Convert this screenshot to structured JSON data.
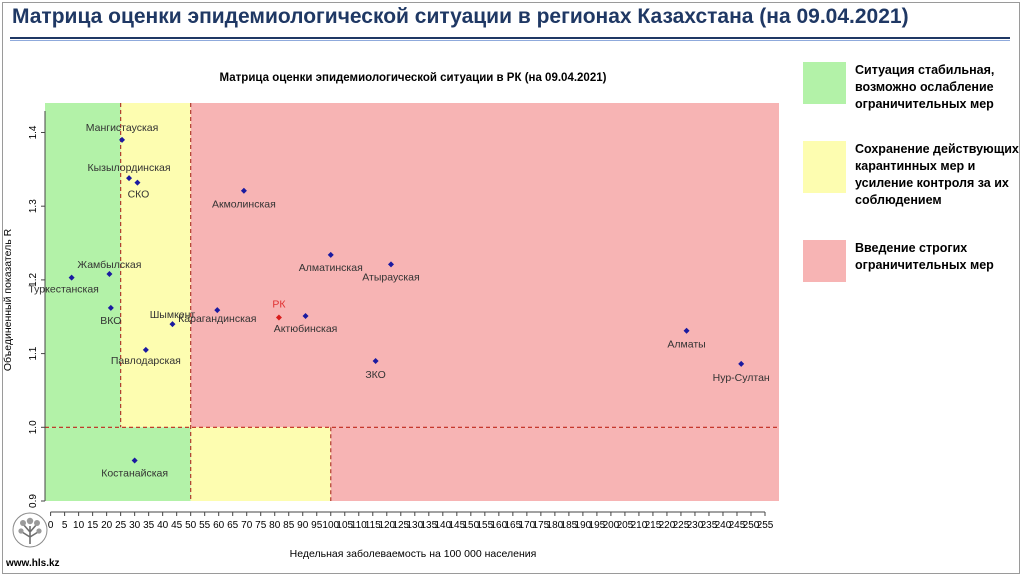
{
  "header": {
    "title": "Матрица оценки эпидемиологической ситуации в регионах Казахстана (на 09.04.2021)"
  },
  "footer": {
    "site": "www.hls.kz"
  },
  "legend": [
    {
      "label_lines": [
        "Ситуация стабильная,",
        "возможно ослабление",
        "ограничительных мер"
      ],
      "color": "#b3f2a8"
    },
    {
      "label_lines": [
        "Сохранение действующих",
        "карантинных мер и",
        "усиление контроля за их",
        "соблюдением"
      ],
      "color": "#fdfdb0"
    },
    {
      "label_lines": [
        "Введение строгих",
        "ограничительных мер"
      ],
      "color": "#f7b4b4"
    }
  ],
  "chart_data": {
    "type": "scatter",
    "title": "Матрица оценки эпидемиологической ситуации в РК (на 09.04.2021)",
    "xlabel": "Недельная заболеваемость на 100 000 населения",
    "ylabel": "Объединенный показатель R",
    "xlim": [
      -2,
      260
    ],
    "ylim": [
      0.9,
      1.44
    ],
    "xticks": [
      0,
      5,
      10,
      15,
      20,
      25,
      30,
      35,
      40,
      45,
      50,
      55,
      60,
      65,
      70,
      75,
      80,
      85,
      90,
      95,
      100,
      105,
      110,
      115,
      120,
      125,
      130,
      135,
      140,
      145,
      150,
      155,
      160,
      165,
      170,
      175,
      180,
      185,
      190,
      195,
      200,
      205,
      210,
      215,
      220,
      225,
      230,
      235,
      240,
      245,
      250,
      255
    ],
    "yticks": [
      0.9,
      1.0,
      1.1,
      1.2,
      1.3,
      1.4
    ],
    "grid": false,
    "zones": [
      {
        "x": [
          -2,
          25
        ],
        "y": [
          1.0,
          1.44
        ],
        "color": "#b3f2a8"
      },
      {
        "x": [
          25,
          50
        ],
        "y": [
          1.0,
          1.44
        ],
        "color": "#fdfdb0"
      },
      {
        "x": [
          50,
          260
        ],
        "y": [
          1.0,
          1.44
        ],
        "color": "#f7b4b4"
      },
      {
        "x": [
          -2,
          50
        ],
        "y": [
          0.9,
          1.0
        ],
        "color": "#b3f2a8"
      },
      {
        "x": [
          50,
          100
        ],
        "y": [
          0.9,
          1.0
        ],
        "color": "#fdfdb0"
      },
      {
        "x": [
          100,
          260
        ],
        "y": [
          0.9,
          1.0
        ],
        "color": "#f7b4b4"
      }
    ],
    "threshold_lines": [
      {
        "axis": "x",
        "value": 25,
        "y": [
          1.0,
          1.44
        ]
      },
      {
        "axis": "x",
        "value": 50,
        "y": [
          0.9,
          1.44
        ]
      },
      {
        "axis": "x",
        "value": 100,
        "y": [
          0.9,
          1.0
        ]
      },
      {
        "axis": "y",
        "value": 1.0
      }
    ],
    "points": [
      {
        "label": "Мангистауская",
        "x": 25.5,
        "y": 1.39,
        "color": "#1a1aa0",
        "label_color": "#333333"
      },
      {
        "label": "Кызылординская",
        "x": 28,
        "y": 1.338,
        "color": "#1a1aa0",
        "label_color": "#333333"
      },
      {
        "label": "СКО",
        "x": 31,
        "y": 1.332,
        "color": "#1a1aa0",
        "label_color": "#333333"
      },
      {
        "label": "Акмолинская",
        "x": 69,
        "y": 1.321,
        "color": "#1a1aa0",
        "label_color": "#333333"
      },
      {
        "label": "Жамбылская",
        "x": 21,
        "y": 1.208,
        "color": "#1a1aa0",
        "label_color": "#333333"
      },
      {
        "label": "Туркестанская",
        "x": 7.5,
        "y": 1.203,
        "color": "#1a1aa0",
        "label_color": "#333333"
      },
      {
        "label": "Алматинская",
        "x": 100,
        "y": 1.234,
        "color": "#1a1aa0",
        "label_color": "#333333"
      },
      {
        "label": "Атырауская",
        "x": 121.5,
        "y": 1.221,
        "color": "#1a1aa0",
        "label_color": "#333333"
      },
      {
        "label": "ВКО",
        "x": 21.5,
        "y": 1.162,
        "color": "#1a1aa0",
        "label_color": "#333333"
      },
      {
        "label": "Шымкент",
        "x": 43.5,
        "y": 1.14,
        "color": "#1a1aa0",
        "label_color": "#333333"
      },
      {
        "label": "Карагандинская",
        "x": 59.5,
        "y": 1.159,
        "color": "#1a1aa0",
        "label_color": "#333333"
      },
      {
        "label": "РК",
        "x": 81.5,
        "y": 1.149,
        "color": "#d81c1c",
        "label_color": "#e03030"
      },
      {
        "label": "Актюбинская",
        "x": 91,
        "y": 1.151,
        "color": "#1a1aa0",
        "label_color": "#333333"
      },
      {
        "label": "Павлодарская",
        "x": 34,
        "y": 1.105,
        "color": "#1a1aa0",
        "label_color": "#333333"
      },
      {
        "label": "ЗКО",
        "x": 116,
        "y": 1.09,
        "color": "#1a1aa0",
        "label_color": "#333333"
      },
      {
        "label": "Алматы",
        "x": 227,
        "y": 1.131,
        "color": "#1a1aa0",
        "label_color": "#333333"
      },
      {
        "label": "Нур-Султан",
        "x": 246.5,
        "y": 1.086,
        "color": "#1a1aa0",
        "label_color": "#333333"
      },
      {
        "label": "Костанайская",
        "x": 30,
        "y": 0.955,
        "color": "#1a1aa0",
        "label_color": "#333333"
      }
    ]
  }
}
